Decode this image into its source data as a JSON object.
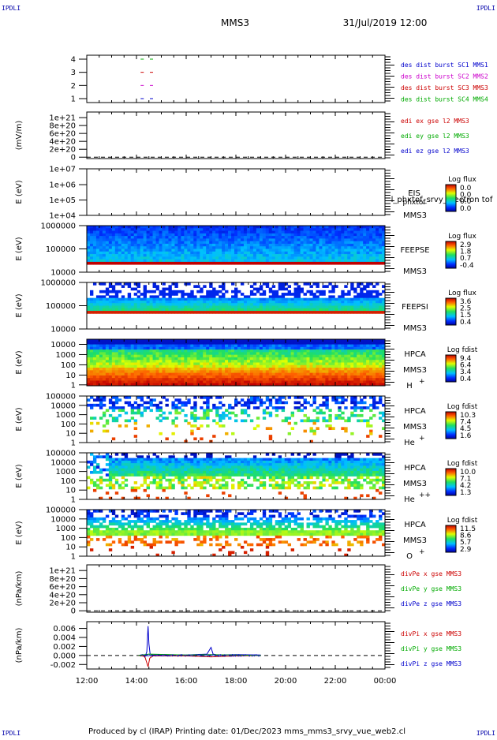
{
  "header": {
    "corner_left_top": "IPDLI",
    "corner_right_top": "IPDLI",
    "corner_left_bottom": "IPDLI",
    "corner_right_bottom": "IPDLI",
    "spacecraft": "MMS3",
    "datetime": "31/Jul/2019 12:00"
  },
  "footer": {
    "text": "Produced by cl (IRAP)   Printing date: 01/Dec/2023   mms_mms3_srvy_vue_web2.cl"
  },
  "time_axis": {
    "ticks": [
      "12:00",
      "14:00",
      "16:00",
      "18:00",
      "20:00",
      "22:00",
      "00:00"
    ]
  },
  "chart_data": [
    {
      "panel": "burst",
      "type": "line",
      "yticks": [
        "1",
        "2",
        "3",
        "4"
      ],
      "legend": [
        {
          "label": "des dist burst SC1 MMS1",
          "color": "#0000cc"
        },
        {
          "label": "des dist burst SC2 MMS2",
          "color": "#cc00cc"
        },
        {
          "label": "des dist burst SC3 MMS3",
          "color": "#cc0000"
        },
        {
          "label": "des dist burst SC4 MMS4",
          "color": "#00aa00"
        }
      ],
      "series": [
        {
          "level": 4,
          "color": "#00aa00",
          "start": "14:10",
          "end": "14:40"
        },
        {
          "level": 3,
          "color": "#cc0000",
          "start": "14:10",
          "end": "14:40"
        },
        {
          "level": 2,
          "color": "#cc00cc",
          "start": "14:10",
          "end": "14:40"
        },
        {
          "level": 1,
          "color": "#0000cc",
          "start": "14:10",
          "end": "14:40"
        }
      ]
    },
    {
      "panel": "edi",
      "type": "line",
      "ylabel": "(mV/m)",
      "yticks": [
        "0",
        "2e+20",
        "4e+20",
        "6e+20",
        "8e+20",
        "1e+21"
      ],
      "legend": [
        {
          "label": "edi ex gse l2 MMS3",
          "color": "#cc0000"
        },
        {
          "label": "edi ey gse l2 MMS3",
          "color": "#00aa00"
        },
        {
          "label": "edi ez gse l2 MMS3",
          "color": "#0000cc"
        }
      ]
    },
    {
      "panel": "eis",
      "type": "heatmap",
      "ylabel": "E (eV)",
      "yticks": [
        "1e+04",
        "1e+05",
        "1e+06",
        "1e+07"
      ],
      "instrument": "EIS",
      "extra": "phxtof",
      "overlay": "l_phxtof_srvy_electron tof",
      "sc": "MMS3",
      "cbar_title": "Log flux",
      "cbar_ticks": [
        "0.0",
        "0.0",
        "0.0",
        "0.0"
      ]
    },
    {
      "panel": "feeps_e",
      "type": "heatmap",
      "ylabel": "E (eV)",
      "yticks": [
        "10000",
        "100000",
        "1000000"
      ],
      "instrument": "FEEPSE",
      "sc": "MMS3",
      "cbar_title": "Log flux",
      "cbar_ticks": [
        "2.9",
        "1.8",
        "0.7",
        "-0.4"
      ]
    },
    {
      "panel": "feeps_i",
      "type": "heatmap",
      "ylabel": "E (eV)",
      "yticks": [
        "10000",
        "100000",
        "1000000"
      ],
      "instrument": "FEEPSI",
      "sc": "MMS3",
      "cbar_title": "Log flux",
      "cbar_ticks": [
        "3.6",
        "2.5",
        "1.5",
        "0.4"
      ]
    },
    {
      "panel": "hpca_h",
      "type": "heatmap",
      "ylabel": "E (eV)",
      "yticks": [
        "1",
        "10",
        "100",
        "1000",
        "10000"
      ],
      "instrument": "HPCA",
      "sc": "MMS3",
      "species": "H",
      "charge": "+",
      "cbar_title": "Log fdist",
      "cbar_ticks": [
        "9.4",
        "6.4",
        "3.4",
        "0.4"
      ]
    },
    {
      "panel": "hpca_he1",
      "type": "heatmap",
      "ylabel": "E (eV)",
      "yticks": [
        "1",
        "10",
        "100",
        "1000",
        "10000",
        "100000"
      ],
      "instrument": "HPCA",
      "sc": "MMS3",
      "species": "He",
      "charge": "+",
      "cbar_title": "Log fdist",
      "cbar_ticks": [
        "10.3",
        "7.4",
        "4.5",
        "1.6"
      ]
    },
    {
      "panel": "hpca_he2",
      "type": "heatmap",
      "ylabel": "E (eV)",
      "yticks": [
        "1",
        "10",
        "100",
        "1000",
        "10000",
        "100000"
      ],
      "instrument": "HPCA",
      "sc": "MMS3",
      "species": "He",
      "charge": "++",
      "cbar_title": "Log fdist",
      "cbar_ticks": [
        "10.0",
        "7.1",
        "4.2",
        "1.3"
      ]
    },
    {
      "panel": "hpca_o",
      "type": "heatmap",
      "ylabel": "E (eV)",
      "yticks": [
        "1",
        "10",
        "100",
        "1000",
        "10000",
        "100000"
      ],
      "instrument": "HPCA",
      "sc": "MMS3",
      "species": "O",
      "charge": "+",
      "cbar_title": "Log fdist",
      "cbar_ticks": [
        "11.5",
        "8.6",
        "5.7",
        "2.9"
      ]
    },
    {
      "panel": "divpe",
      "type": "line",
      "ylabel": "(nPa/km)",
      "yticks": [
        "0",
        "2e+20",
        "4e+20",
        "6e+20",
        "8e+20",
        "1e+21"
      ],
      "legend": [
        {
          "label": "divPe x gse MMS3",
          "color": "#cc0000"
        },
        {
          "label": "divPe y gse MMS3",
          "color": "#00aa00"
        },
        {
          "label": "divPe z gse MMS3",
          "color": "#0000cc"
        }
      ]
    },
    {
      "panel": "divpi",
      "type": "line",
      "ylabel": "(nPa/km)",
      "yticks": [
        "-0.002",
        "0.000",
        "0.002",
        "0.004",
        "0.006"
      ],
      "ylim": [
        -0.003,
        0.0075
      ],
      "legend": [
        {
          "label": "divPi x gse MMS3",
          "color": "#cc0000"
        },
        {
          "label": "divPi y gse MMS3",
          "color": "#00aa00"
        },
        {
          "label": "divPi z gse MMS3",
          "color": "#0000cc"
        }
      ],
      "series": [
        {
          "name": "divPi z gse MMS3",
          "color": "#0000cc",
          "x": [
            "14:05",
            "14:15",
            "14:20",
            "14:25",
            "14:28",
            "14:30",
            "14:33",
            "14:40",
            "15:00",
            "16:00",
            "16:50",
            "17:00",
            "17:05",
            "17:15",
            "18:00",
            "19:00"
          ],
          "y": [
            0.0,
            0.0002,
            -0.0004,
            0.0008,
            0.0065,
            0.0025,
            0.0003,
            0.0001,
            0.0002,
            0.0001,
            0.0003,
            0.0018,
            0.0003,
            0.0001,
            0.0002,
            0.0001
          ]
        },
        {
          "name": "divPi x gse MMS3",
          "color": "#cc0000",
          "x": [
            "14:05",
            "14:20",
            "14:28",
            "14:32",
            "14:40",
            "16:00",
            "17:00",
            "18:00",
            "19:00"
          ],
          "y": [
            0.0,
            -0.0002,
            -0.0025,
            -0.0006,
            -0.0001,
            -0.0001,
            -0.0003,
            -0.0001,
            0.0
          ]
        },
        {
          "name": "divPi y gse MMS3",
          "color": "#00aa00",
          "x": [
            "14:05",
            "14:30",
            "16:00",
            "17:00",
            "19:00"
          ],
          "y": [
            0.0,
            0.0003,
            0.0001,
            0.0002,
            0.0
          ]
        }
      ]
    }
  ]
}
